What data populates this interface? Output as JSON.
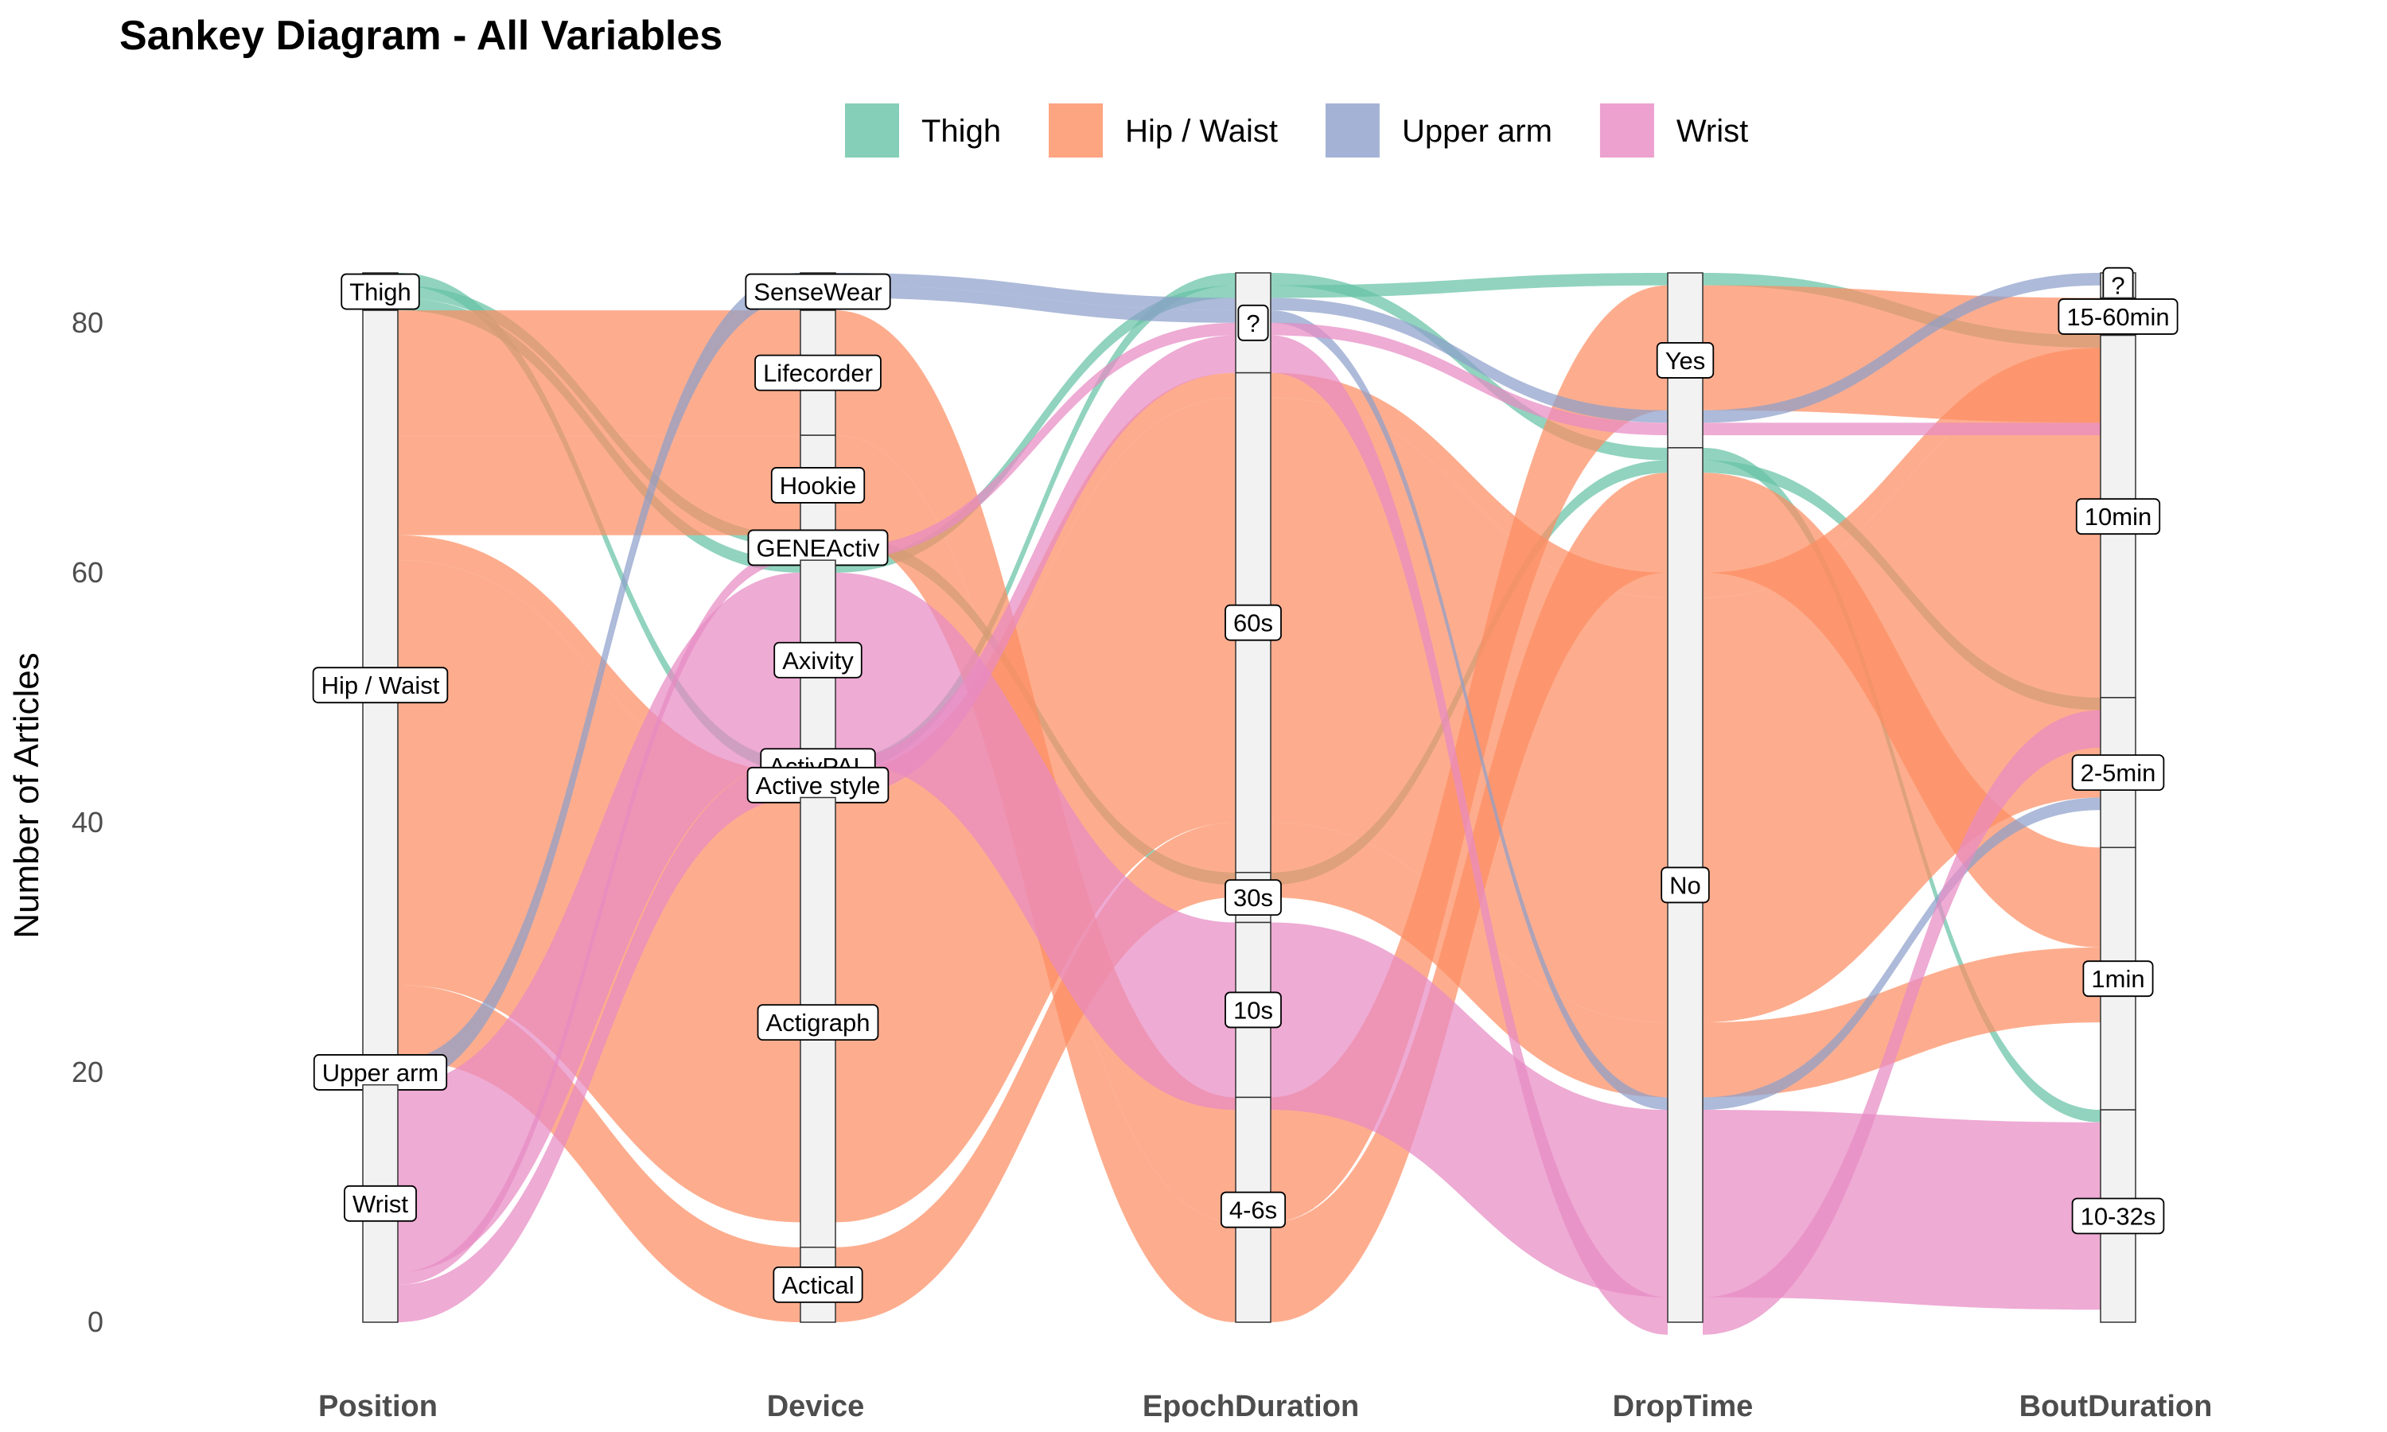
{
  "chart_data": {
    "type": "sankey",
    "title": "Sankey Diagram - All Variables",
    "ylabel": "Number of Articles",
    "ylim": [
      0,
      84
    ],
    "yticks": [
      0,
      20,
      40,
      60,
      80
    ],
    "legend_position": "top",
    "grid": false,
    "colors": {
      "Thigh": "#66C2A5",
      "Hip / Waist": "#FC8D62",
      "Upper arm": "#8DA0CB",
      "Wrist": "#E78AC3"
    },
    "legend": [
      "Thigh",
      "Hip / Waist",
      "Upper arm",
      "Wrist"
    ],
    "axes": [
      {
        "name": "Position",
        "strata": [
          {
            "label": "Thigh",
            "value": 3
          },
          {
            "label": "Hip / Waist",
            "value": 60
          },
          {
            "label": "Upper arm",
            "value": 2
          },
          {
            "label": "Wrist",
            "value": 19
          }
        ]
      },
      {
        "name": "Device",
        "strata": [
          {
            "label": "SenseWear",
            "value": 3
          },
          {
            "label": "Lifecorder",
            "value": 10
          },
          {
            "label": "Hookie",
            "value": 8
          },
          {
            "label": "GENEActiv",
            "value": 2
          },
          {
            "label": "Axivity",
            "value": 16
          },
          {
            "label": "ActivPAL",
            "value": 1
          },
          {
            "label": "Active style",
            "value": 2
          },
          {
            "label": "Actigraph",
            "value": 36
          },
          {
            "label": "Actical",
            "value": 6
          }
        ]
      },
      {
        "name": "EpochDuration",
        "strata": [
          {
            "label": "?",
            "value": 8
          },
          {
            "label": "60s",
            "value": 40
          },
          {
            "label": "30s",
            "value": 4
          },
          {
            "label": "10s",
            "value": 14
          },
          {
            "label": "4-6s",
            "value": 18
          }
        ]
      },
      {
        "name": "DropTime",
        "strata": [
          {
            "label": "Yes",
            "value": 14
          },
          {
            "label": "No",
            "value": 70
          }
        ]
      },
      {
        "name": "BoutDuration",
        "strata": [
          {
            "label": "?",
            "value": 2
          },
          {
            "label": "15-60min",
            "value": 3
          },
          {
            "label": "10min",
            "value": 29
          },
          {
            "label": "2-5min",
            "value": 12
          },
          {
            "label": "1min",
            "value": 21
          },
          {
            "label": "10-32s",
            "value": 17
          }
        ]
      }
    ],
    "flows": [
      {
        "group": "Thigh",
        "path": [
          "Thigh",
          "ActivPAL",
          "?",
          "No",
          "10-32s"
        ],
        "value": 1
      },
      {
        "group": "Thigh",
        "path": [
          "Thigh",
          "GENEActiv",
          "30s",
          "No",
          "2-5min"
        ],
        "value": 1
      },
      {
        "group": "Thigh",
        "path": [
          "Thigh",
          "Axivity",
          "?",
          "Yes",
          "10min"
        ],
        "value": 1
      },
      {
        "group": "Hip / Waist",
        "path": [
          "Hip / Waist",
          "Lifecorder",
          "4-6s",
          "Yes",
          "15-60min"
        ],
        "value": 10
      },
      {
        "group": "Hip / Waist",
        "path": [
          "Hip / Waist",
          "Hookie",
          "4-6s",
          "No",
          "1min"
        ],
        "value": 8
      },
      {
        "group": "Hip / Waist",
        "path": [
          "Hip / Waist",
          "Active style",
          "60s",
          "No",
          "10min"
        ],
        "value": 2
      },
      {
        "group": "Hip / Waist",
        "path": [
          "Hip / Waist",
          "Actigraph",
          "60s",
          "No",
          "10min"
        ],
        "value": 34
      },
      {
        "group": "Hip / Waist",
        "path": [
          "Hip / Waist",
          "Actical",
          "60s",
          "No",
          "1min"
        ],
        "value": 6
      },
      {
        "group": "Upper arm",
        "path": [
          "Upper arm",
          "SenseWear",
          "?",
          "Yes",
          "?"
        ],
        "value": 1
      },
      {
        "group": "Upper arm",
        "path": [
          "Upper arm",
          "SenseWear",
          "?",
          "No",
          "10min"
        ],
        "value": 1
      },
      {
        "group": "Wrist",
        "path": [
          "Wrist",
          "Axivity",
          "10s",
          "No",
          "10-32s"
        ],
        "value": 15
      },
      {
        "group": "Wrist",
        "path": [
          "Wrist",
          "GENEActiv",
          "?",
          "Yes",
          "15-60min"
        ],
        "value": 1
      },
      {
        "group": "Wrist",
        "path": [
          "Wrist",
          "Axivity",
          "?",
          "No",
          "2-5min"
        ],
        "value": 3
      }
    ]
  }
}
